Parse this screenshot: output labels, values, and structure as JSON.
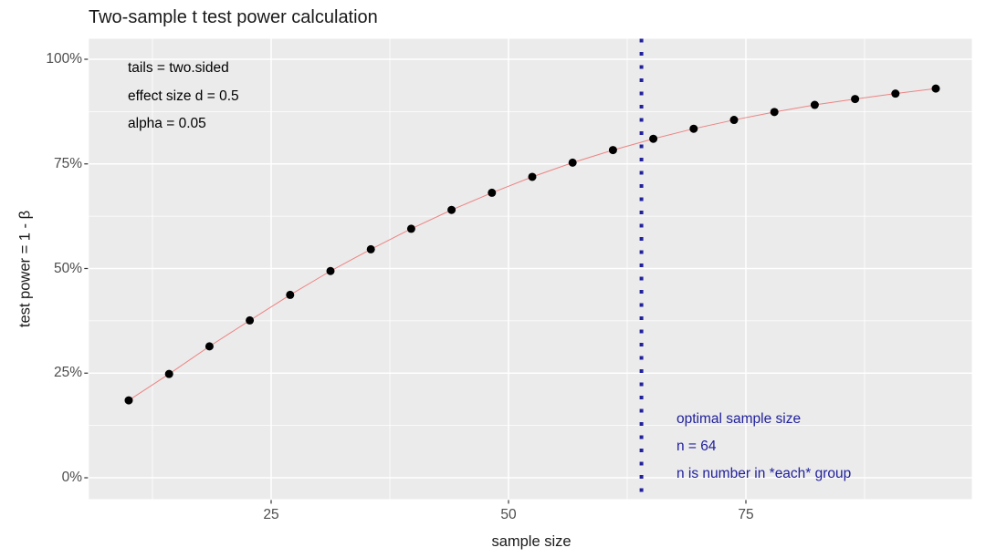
{
  "title": "Two-sample t test power calculation",
  "colors": {
    "panel_bg": "#ebebeb",
    "grid": "#ffffff",
    "tick_mark": "#333333",
    "tick_text": "#4d4d4d",
    "curve_line": "#ee8383",
    "point": "#000000",
    "optimal_blue": "#21219c"
  },
  "chart_data": {
    "type": "line",
    "title": "Two-sample t test power calculation",
    "xlabel": "sample size",
    "ylabel": "test power = 1 - β",
    "series": [
      {
        "name": "power curve",
        "x": [
          10,
          14.25,
          18.5,
          22.75,
          27,
          31.25,
          35.5,
          39.75,
          44,
          48.25,
          52.5,
          56.75,
          61,
          65.25,
          69.5,
          73.75,
          78,
          82.25,
          86.5,
          90.75,
          95
        ],
        "y_power_pct": [
          18.5,
          24.8,
          31.4,
          37.6,
          43.7,
          49.4,
          54.6,
          59.5,
          64.0,
          68.1,
          71.9,
          75.3,
          78.3,
          81.0,
          83.4,
          85.5,
          87.4,
          89.1,
          90.5,
          91.8,
          93.0
        ]
      }
    ],
    "x_ticks": {
      "major": [
        25,
        50,
        75
      ],
      "minor": [
        12.5,
        37.5,
        62.5,
        87.5
      ]
    },
    "y_ticks_pct": {
      "major": [
        0,
        25,
        50,
        75,
        100
      ],
      "minor": [
        12.5,
        37.5,
        62.5,
        87.5
      ]
    },
    "x_tick_labels": [
      "25",
      "50",
      "75"
    ],
    "y_tick_labels": [
      "0%",
      "25%",
      "50%",
      "75%",
      "100%"
    ],
    "xlim": [
      5.8,
      98.8
    ],
    "ylim_pct": [
      -5.1,
      104.9
    ],
    "grid": "white major+minor on grey panel",
    "legend": false,
    "vline": {
      "x": 64,
      "style": "dotted",
      "color": "#21219c"
    },
    "annotations": {
      "params": [
        "tails = two.sided",
        "effect size d = 0.5",
        "alpha = 0.05"
      ],
      "optimal": [
        "optimal sample size",
        "n = 64",
        "n is number in *each* group"
      ],
      "optimal_color": "#21219c"
    }
  }
}
